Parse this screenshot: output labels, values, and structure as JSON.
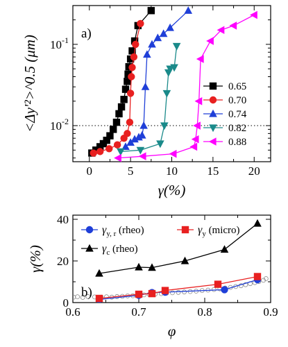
{
  "chart_data": [
    {
      "type": "line",
      "panel_label": "a)",
      "xlabel": "γ(%)",
      "ylabel": "<Δy'²>^0.5 (μm)",
      "xlim": [
        -2,
        22
      ],
      "ylim": [
        0.0036,
        0.3
      ],
      "yscale": "log",
      "xticks": [
        0,
        5,
        10,
        15,
        20
      ],
      "yticks": [
        {
          "value": 0.01,
          "base": "10",
          "exp": "-2"
        },
        {
          "value": 0.1,
          "base": "10",
          "exp": "-1"
        }
      ],
      "reference_line": {
        "value": 0.01,
        "style": "dotted"
      },
      "legend_position": "right",
      "series": [
        {
          "name": "0.65",
          "color": "#000000",
          "marker": "square",
          "x": [
            0.3,
            0.8,
            1.3,
            1.7,
            2.1,
            2.5,
            2.9,
            3.3,
            3.6,
            3.9,
            4.2,
            4.4,
            4.6,
            4.7,
            4.8,
            5.0,
            5.2,
            5.5,
            5.9,
            7.5
          ],
          "y": [
            0.0046,
            0.005,
            0.0055,
            0.006,
            0.0066,
            0.0075,
            0.009,
            0.011,
            0.014,
            0.017,
            0.021,
            0.028,
            0.035,
            0.043,
            0.053,
            0.066,
            0.083,
            0.11,
            0.17,
            0.26
          ]
        },
        {
          "name": "0.70",
          "color": "#e82020",
          "marker": "circle",
          "x": [
            0.5,
            1.3,
            2.4,
            3.4,
            4.2,
            4.6,
            4.9,
            5.0,
            5.1,
            5.2,
            5.4,
            5.6,
            6.2
          ],
          "y": [
            0.0046,
            0.0048,
            0.0052,
            0.0058,
            0.007,
            0.008,
            0.011,
            0.025,
            0.04,
            0.052,
            0.07,
            0.1,
            0.18
          ]
        },
        {
          "name": "0.74",
          "color": "#1f3fd8",
          "marker": "triangle-up",
          "x": [
            4.4,
            5.0,
            5.5,
            6.0,
            6.4,
            6.6,
            6.8,
            7.0,
            7.6,
            8.3,
            9.0,
            9.8,
            12.0
          ],
          "y": [
            0.0055,
            0.0062,
            0.0068,
            0.0072,
            0.0076,
            0.01,
            0.03,
            0.075,
            0.1,
            0.12,
            0.135,
            0.16,
            0.26
          ]
        },
        {
          "name": "0.82",
          "color": "#1a8a8a",
          "marker": "triangle-down",
          "x": [
            3.8,
            6.2,
            8.6,
            9.1,
            9.4,
            9.6,
            9.8,
            10.3,
            10.6
          ],
          "y": [
            0.0048,
            0.005,
            0.006,
            0.01,
            0.025,
            0.045,
            0.05,
            0.052,
            0.095
          ]
        },
        {
          "name": "0.88",
          "color": "#ff00ff",
          "marker": "triangle-left",
          "x": [
            3.5,
            6.5,
            10.2,
            12.7,
            12.9,
            13.1,
            13.3,
            13.5,
            14.7,
            16.0,
            17.5,
            20.0
          ],
          "y": [
            0.004,
            0.0042,
            0.0045,
            0.0055,
            0.0068,
            0.01,
            0.02,
            0.066,
            0.11,
            0.15,
            0.17,
            0.23
          ]
        }
      ]
    },
    {
      "type": "line",
      "panel_label": "b)",
      "xlabel": "φ",
      "ylabel": "γ(%)",
      "xlim": [
        0.6,
        0.9
      ],
      "ylim": [
        0,
        42
      ],
      "xticks": [
        0.6,
        0.7,
        0.8,
        0.9
      ],
      "yticks": [
        0,
        20,
        40
      ],
      "legend_position": "top",
      "series": [
        {
          "name_base": "γ",
          "name_sub": "y, r",
          "name_tail": " (rheo)",
          "color": "#1f3fd8",
          "marker": "circle",
          "x": [
            0.64,
            0.7,
            0.72,
            0.74,
            0.83,
            0.88
          ],
          "y": [
            1.5,
            3.5,
            4.8,
            5.0,
            6.2,
            11.0
          ]
        },
        {
          "name_base": "γ",
          "name_sub": "y",
          "name_tail": " (micro)",
          "color": "#e82020",
          "marker": "square",
          "x": [
            0.64,
            0.7,
            0.72,
            0.74,
            0.82,
            0.88
          ],
          "y": [
            2.0,
            4.0,
            4.3,
            5.8,
            8.8,
            12.5
          ]
        },
        {
          "name_base": "γ",
          "name_sub": "c",
          "name_tail": " (rheo)",
          "color": "#000000",
          "marker": "triangle-up",
          "x": [
            0.64,
            0.7,
            0.72,
            0.77,
            0.83,
            0.88
          ],
          "y": [
            14.0,
            17.0,
            16.8,
            20.0,
            25.5,
            38.0
          ]
        },
        {
          "name": "",
          "color": "#888888",
          "marker": "open-circle",
          "x": [
            0.601,
            0.607,
            0.615,
            0.623,
            0.633,
            0.643,
            0.651,
            0.659,
            0.667,
            0.675,
            0.683,
            0.691,
            0.699,
            0.708,
            0.716,
            0.725,
            0.734,
            0.742,
            0.751,
            0.76,
            0.769,
            0.778,
            0.787,
            0.796,
            0.805,
            0.814,
            0.823,
            0.831,
            0.839,
            0.847,
            0.855,
            0.862,
            0.869,
            0.876,
            0.882,
            0.889,
            0.893
          ],
          "y": [
            2.6,
            2.8,
            2.5,
            2.9,
            2.7,
            2.6,
            2.8,
            2.6,
            2.9,
            3.0,
            3.2,
            3.3,
            3.5,
            3.7,
            3.9,
            4.1,
            4.3,
            4.5,
            4.7,
            4.9,
            5.1,
            5.3,
            5.5,
            5.8,
            6.0,
            6.3,
            6.6,
            7.0,
            7.3,
            7.7,
            8.1,
            8.6,
            9.1,
            9.6,
            10.1,
            10.7,
            11.5
          ]
        }
      ]
    }
  ]
}
